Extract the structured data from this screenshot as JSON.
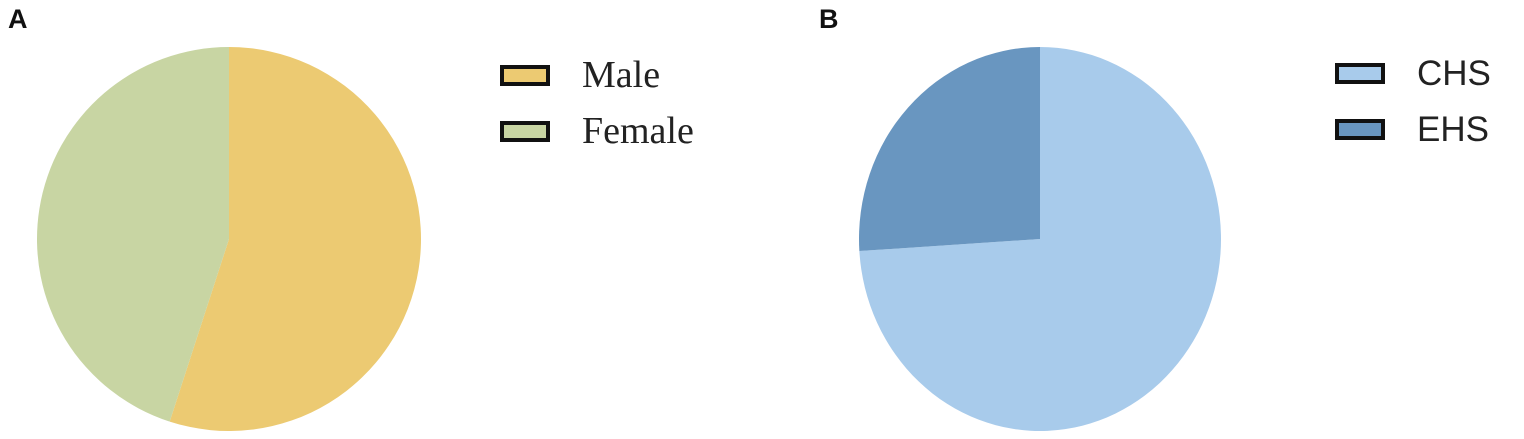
{
  "panels": [
    {
      "letter": "A",
      "legend": [
        {
          "label": "Male"
        },
        {
          "label": "Female"
        }
      ]
    },
    {
      "letter": "B",
      "legend": [
        {
          "label": "CHS"
        },
        {
          "label": "EHS"
        }
      ]
    }
  ],
  "chart_data": [
    {
      "type": "pie",
      "title": "",
      "legend_position": "right",
      "series": [
        {
          "name": "Male",
          "value": 55,
          "color": "#ecca72"
        },
        {
          "name": "Female",
          "value": 45,
          "color": "#c8d5a3"
        }
      ]
    },
    {
      "type": "pie",
      "title": "",
      "legend_position": "right",
      "series": [
        {
          "name": "CHS",
          "value": 74,
          "color": "#a8cbeb"
        },
        {
          "name": "EHS",
          "value": 26,
          "color": "#6996c0"
        }
      ]
    }
  ]
}
